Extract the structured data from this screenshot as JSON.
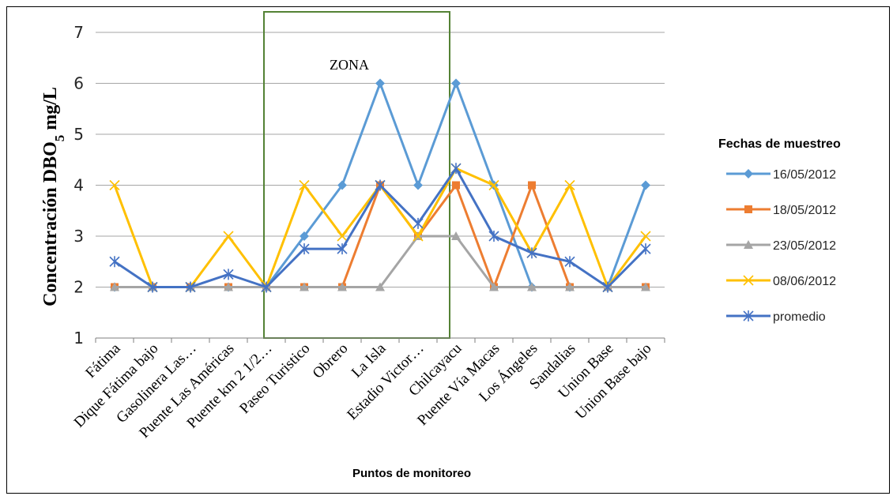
{
  "chart_data": {
    "type": "line",
    "xlabel": "Puntos de monitoreo",
    "ylabel_main": "Concentración DBO",
    "ylabel_sub": "5",
    "ylabel_unit": " mg/L",
    "ylim": [
      1,
      7
    ],
    "yticks": [
      1,
      2,
      3,
      4,
      5,
      6,
      7
    ],
    "grid": true,
    "legend_title": "Fechas de muestreo",
    "legend_position": "right",
    "zone_label": "ZONA",
    "categories": [
      "Fátima",
      "Dique Fátima bajo",
      "Gasolinera Las…",
      "Puente Las Américas",
      "Puente km 2 1/2…",
      "Paseo Turistico",
      "Obrero",
      "La Isla",
      "Estadio Victor…",
      "Chilcayacu",
      "Puente Vía Macas",
      "Los Ángeles",
      "Sandalias",
      "Union Base",
      "Union Base bajo"
    ],
    "series": [
      {
        "name": "16/05/2012",
        "color": "#5B9BD5",
        "marker": "diamond",
        "values": [
          2,
          2,
          2,
          2,
          2,
          3,
          4,
          6,
          4,
          6,
          4,
          2,
          2,
          2,
          4
        ]
      },
      {
        "name": "18/05/2012",
        "color": "#ED7D31",
        "marker": "square",
        "values": [
          2,
          2,
          2,
          2,
          2,
          2,
          2,
          4,
          3,
          4,
          2,
          4,
          2,
          2,
          2
        ]
      },
      {
        "name": "23/05/2012",
        "color": "#A5A5A5",
        "marker": "triangle",
        "values": [
          2,
          2,
          2,
          2,
          2,
          2,
          2,
          2,
          3,
          3,
          2,
          2,
          2,
          2,
          2
        ]
      },
      {
        "name": "08/06/2012",
        "color": "#FFC000",
        "marker": "x",
        "values": [
          4,
          2,
          2,
          3,
          2,
          4,
          3,
          4,
          3,
          4.33,
          4,
          2.67,
          4,
          2,
          3
        ]
      },
      {
        "name": "promedio",
        "color": "#4472C4",
        "marker": "star",
        "values": [
          2.5,
          2,
          2,
          2.25,
          2,
          2.75,
          2.75,
          4,
          3.25,
          4.33,
          3,
          2.67,
          2.5,
          2,
          2.75
        ]
      }
    ]
  }
}
